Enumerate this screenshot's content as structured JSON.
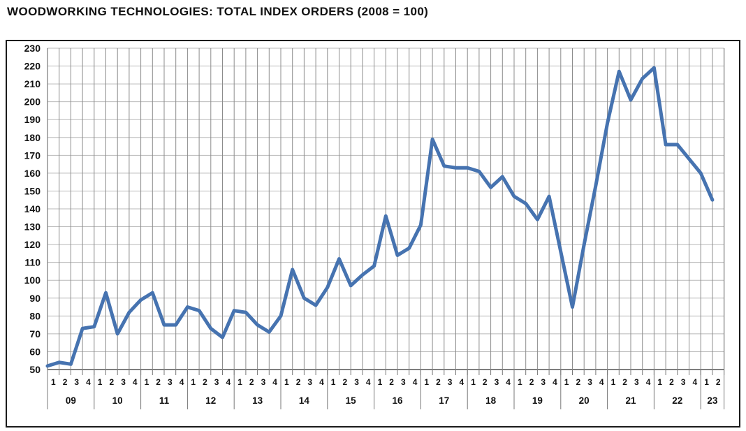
{
  "page": {
    "title": "WOODWORKING TECHNOLOGIES: TOTAL INDEX ORDERS (2008 = 100)"
  },
  "chart_data": {
    "type": "line",
    "title": "WOODWORKING TECHNOLOGIES: TOTAL INDEX ORDERS (2008 = 100)",
    "xlabel": "",
    "ylabel": "",
    "ylim": [
      50,
      230
    ],
    "y_tick_step": 10,
    "y_ticks": [
      230,
      220,
      210,
      200,
      190,
      180,
      170,
      160,
      150,
      140,
      130,
      120,
      110,
      100,
      90,
      80,
      70,
      60,
      50
    ],
    "grid": true,
    "legend_position": "none",
    "line_color": "#4673b0",
    "vertical_grid_color": "#8c8c8c",
    "horizontal_grid_color": "#b8b8b8",
    "axis_color": "#555555",
    "x_axis": {
      "years": [
        {
          "label": "09",
          "quarters": [
            "1",
            "2",
            "3",
            "4"
          ]
        },
        {
          "label": "10",
          "quarters": [
            "1",
            "2",
            "3",
            "4"
          ]
        },
        {
          "label": "11",
          "quarters": [
            "1",
            "2",
            "3",
            "4"
          ]
        },
        {
          "label": "12",
          "quarters": [
            "1",
            "2",
            "3",
            "4"
          ]
        },
        {
          "label": "13",
          "quarters": [
            "1",
            "2",
            "3",
            "4"
          ]
        },
        {
          "label": "14",
          "quarters": [
            "1",
            "2",
            "3",
            "4"
          ]
        },
        {
          "label": "15",
          "quarters": [
            "1",
            "2",
            "3",
            "4"
          ]
        },
        {
          "label": "16",
          "quarters": [
            "1",
            "2",
            "3",
            "4"
          ]
        },
        {
          "label": "17",
          "quarters": [
            "1",
            "2",
            "3",
            "4"
          ]
        },
        {
          "label": "18",
          "quarters": [
            "1",
            "2",
            "3",
            "4"
          ]
        },
        {
          "label": "19",
          "quarters": [
            "1",
            "2",
            "3",
            "4"
          ]
        },
        {
          "label": "20",
          "quarters": [
            "1",
            "2",
            "3",
            "4"
          ]
        },
        {
          "label": "21",
          "quarters": [
            "1",
            "2",
            "3",
            "4"
          ]
        },
        {
          "label": "22",
          "quarters": [
            "1",
            "2",
            "3",
            "4"
          ]
        },
        {
          "label": "23",
          "quarters": [
            "1",
            "2"
          ]
        }
      ]
    },
    "series": [
      {
        "name": "Total index orders (2008 = 100)",
        "values": [
          52,
          54,
          53,
          73,
          74,
          93,
          70,
          82,
          89,
          93,
          75,
          75,
          85,
          83,
          73,
          68,
          83,
          82,
          75,
          71,
          80,
          106,
          90,
          86,
          96,
          112,
          97,
          103,
          108,
          136,
          114,
          118,
          131,
          179,
          164,
          163,
          163,
          161,
          152,
          158,
          147,
          143,
          134,
          147,
          116,
          85,
          120,
          153,
          188,
          217,
          201,
          213,
          219,
          176,
          176,
          168,
          160,
          145
        ]
      }
    ]
  }
}
